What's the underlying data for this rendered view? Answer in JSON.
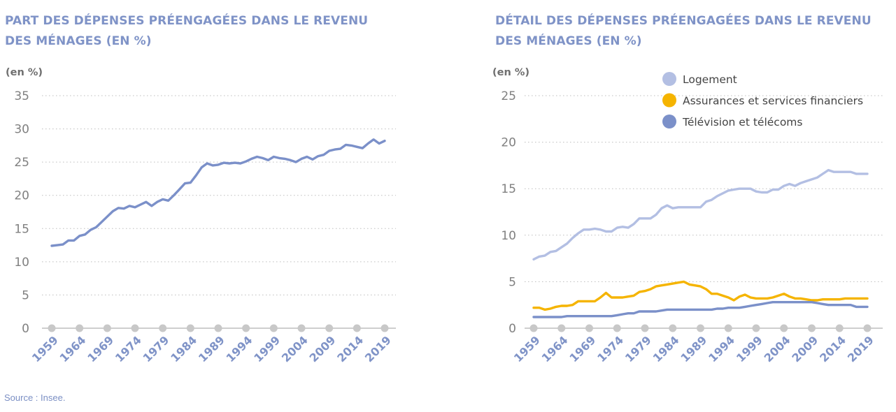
{
  "colors": {
    "title": "#7f93c7",
    "grid": "#bdbdbd",
    "zero_dots": "#c8c8c8",
    "logement": "#b3bfe3",
    "assurances": "#f5b400",
    "television": "#7b90c9",
    "total": "#7b90c9"
  },
  "source": "Source : Insee.",
  "chart_data": [
    {
      "type": "line",
      "title": "PART DES DÉPENSES PRÉENGAGÉES DANS LE REVENU DES MÉNAGES (EN %)",
      "unit_label": "(en %)",
      "ylim": [
        0,
        35
      ],
      "yticks": [
        0,
        5,
        10,
        15,
        20,
        25,
        30,
        35
      ],
      "xtick_labels": [
        "1959",
        "1964",
        "1969",
        "1974",
        "1979",
        "1984",
        "1989",
        "1994",
        "1999",
        "2004",
        "2009",
        "2014",
        "2019"
      ],
      "grid": true,
      "x": [
        1959,
        1960,
        1961,
        1962,
        1963,
        1964,
        1965,
        1966,
        1967,
        1968,
        1969,
        1970,
        1971,
        1972,
        1973,
        1974,
        1975,
        1976,
        1977,
        1978,
        1979,
        1980,
        1981,
        1982,
        1983,
        1984,
        1985,
        1986,
        1987,
        1988,
        1989,
        1990,
        1991,
        1992,
        1993,
        1994,
        1995,
        1996,
        1997,
        1998,
        1999,
        2000,
        2001,
        2002,
        2003,
        2004,
        2005,
        2006,
        2007,
        2008,
        2009,
        2010,
        2011,
        2012,
        2013,
        2014,
        2015,
        2016,
        2017,
        2018,
        2019
      ],
      "series": [
        {
          "values": [
            12.4,
            12.5,
            12.6,
            13.2,
            13.2,
            13.9,
            14.1,
            14.8,
            15.2,
            16.0,
            16.8,
            17.6,
            18.1,
            18.0,
            18.4,
            18.2,
            18.6,
            19.0,
            18.4,
            19.0,
            19.4,
            19.2,
            20.0,
            20.9,
            21.8,
            21.9,
            23.0,
            24.2,
            24.8,
            24.5,
            24.6,
            24.9,
            24.8,
            24.9,
            24.8,
            25.1,
            25.5,
            25.8,
            25.6,
            25.3,
            25.8,
            25.6,
            25.5,
            25.3,
            25.0,
            25.5,
            25.8,
            25.4,
            25.9,
            26.1,
            26.7,
            26.9,
            27.0,
            27.6,
            27.5,
            27.3,
            27.1,
            27.8,
            28.4,
            27.8,
            28.2
          ]
        }
      ]
    },
    {
      "type": "line",
      "title": "DÉTAIL DES DÉPENSES PRÉENGAGÉES DANS LE REVENU DES MÉNAGES (EN %)",
      "unit_label": "(en %)",
      "ylim": [
        0,
        25
      ],
      "yticks": [
        0,
        5,
        10,
        15,
        20,
        25
      ],
      "xtick_labels": [
        "1959",
        "1964",
        "1969",
        "1974",
        "1979",
        "1984",
        "1989",
        "1994",
        "1999",
        "2004",
        "2009",
        "2014",
        "2019"
      ],
      "grid": true,
      "legend_position": "top-right",
      "x": [
        1959,
        1960,
        1961,
        1962,
        1963,
        1964,
        1965,
        1966,
        1967,
        1968,
        1969,
        1970,
        1971,
        1972,
        1973,
        1974,
        1975,
        1976,
        1977,
        1978,
        1979,
        1980,
        1981,
        1982,
        1983,
        1984,
        1985,
        1986,
        1987,
        1988,
        1989,
        1990,
        1991,
        1992,
        1993,
        1994,
        1995,
        1996,
        1997,
        1998,
        1999,
        2000,
        2001,
        2002,
        2003,
        2004,
        2005,
        2006,
        2007,
        2008,
        2009,
        2010,
        2011,
        2012,
        2013,
        2014,
        2015,
        2016,
        2017,
        2018,
        2019
      ],
      "series": [
        {
          "name": "Logement",
          "color_key": "logement",
          "values": [
            7.4,
            7.7,
            7.8,
            8.2,
            8.3,
            8.7,
            9.1,
            9.7,
            10.2,
            10.6,
            10.6,
            10.7,
            10.6,
            10.4,
            10.4,
            10.8,
            10.9,
            10.8,
            11.2,
            11.8,
            11.8,
            11.8,
            12.2,
            12.9,
            13.2,
            12.9,
            13.0,
            13.0,
            13.0,
            13.0,
            13.0,
            13.6,
            13.8,
            14.2,
            14.5,
            14.8,
            14.9,
            15.0,
            15.0,
            15.0,
            14.7,
            14.6,
            14.6,
            14.9,
            14.9,
            15.3,
            15.5,
            15.3,
            15.6,
            15.8,
            16.0,
            16.2,
            16.6,
            17.0,
            16.8,
            16.8,
            16.8,
            16.8,
            16.6,
            16.6,
            16.6
          ]
        },
        {
          "name": "Assurances et services financiers",
          "color_key": "assurances",
          "values": [
            2.2,
            2.2,
            2.0,
            2.1,
            2.3,
            2.4,
            2.4,
            2.5,
            2.9,
            2.9,
            2.9,
            2.9,
            3.3,
            3.8,
            3.3,
            3.3,
            3.3,
            3.4,
            3.5,
            3.9,
            4.0,
            4.2,
            4.5,
            4.6,
            4.7,
            4.8,
            4.9,
            5.0,
            4.7,
            4.6,
            4.5,
            4.2,
            3.7,
            3.7,
            3.5,
            3.3,
            3.0,
            3.4,
            3.6,
            3.3,
            3.2,
            3.2,
            3.2,
            3.3,
            3.5,
            3.7,
            3.4,
            3.2,
            3.2,
            3.1,
            3.0,
            3.0,
            3.1,
            3.1,
            3.1,
            3.1,
            3.2,
            3.2,
            3.2,
            3.2,
            3.2
          ]
        },
        {
          "name": "Télévision et télécoms",
          "color_key": "television",
          "values": [
            1.2,
            1.2,
            1.2,
            1.2,
            1.2,
            1.2,
            1.3,
            1.3,
            1.3,
            1.3,
            1.3,
            1.3,
            1.3,
            1.3,
            1.3,
            1.4,
            1.5,
            1.6,
            1.6,
            1.8,
            1.8,
            1.8,
            1.8,
            1.9,
            2.0,
            2.0,
            2.0,
            2.0,
            2.0,
            2.0,
            2.0,
            2.0,
            2.0,
            2.1,
            2.1,
            2.2,
            2.2,
            2.2,
            2.3,
            2.4,
            2.5,
            2.6,
            2.7,
            2.8,
            2.8,
            2.8,
            2.8,
            2.8,
            2.8,
            2.8,
            2.8,
            2.7,
            2.6,
            2.5,
            2.5,
            2.5,
            2.5,
            2.5,
            2.3,
            2.3,
            2.3
          ]
        }
      ]
    }
  ]
}
